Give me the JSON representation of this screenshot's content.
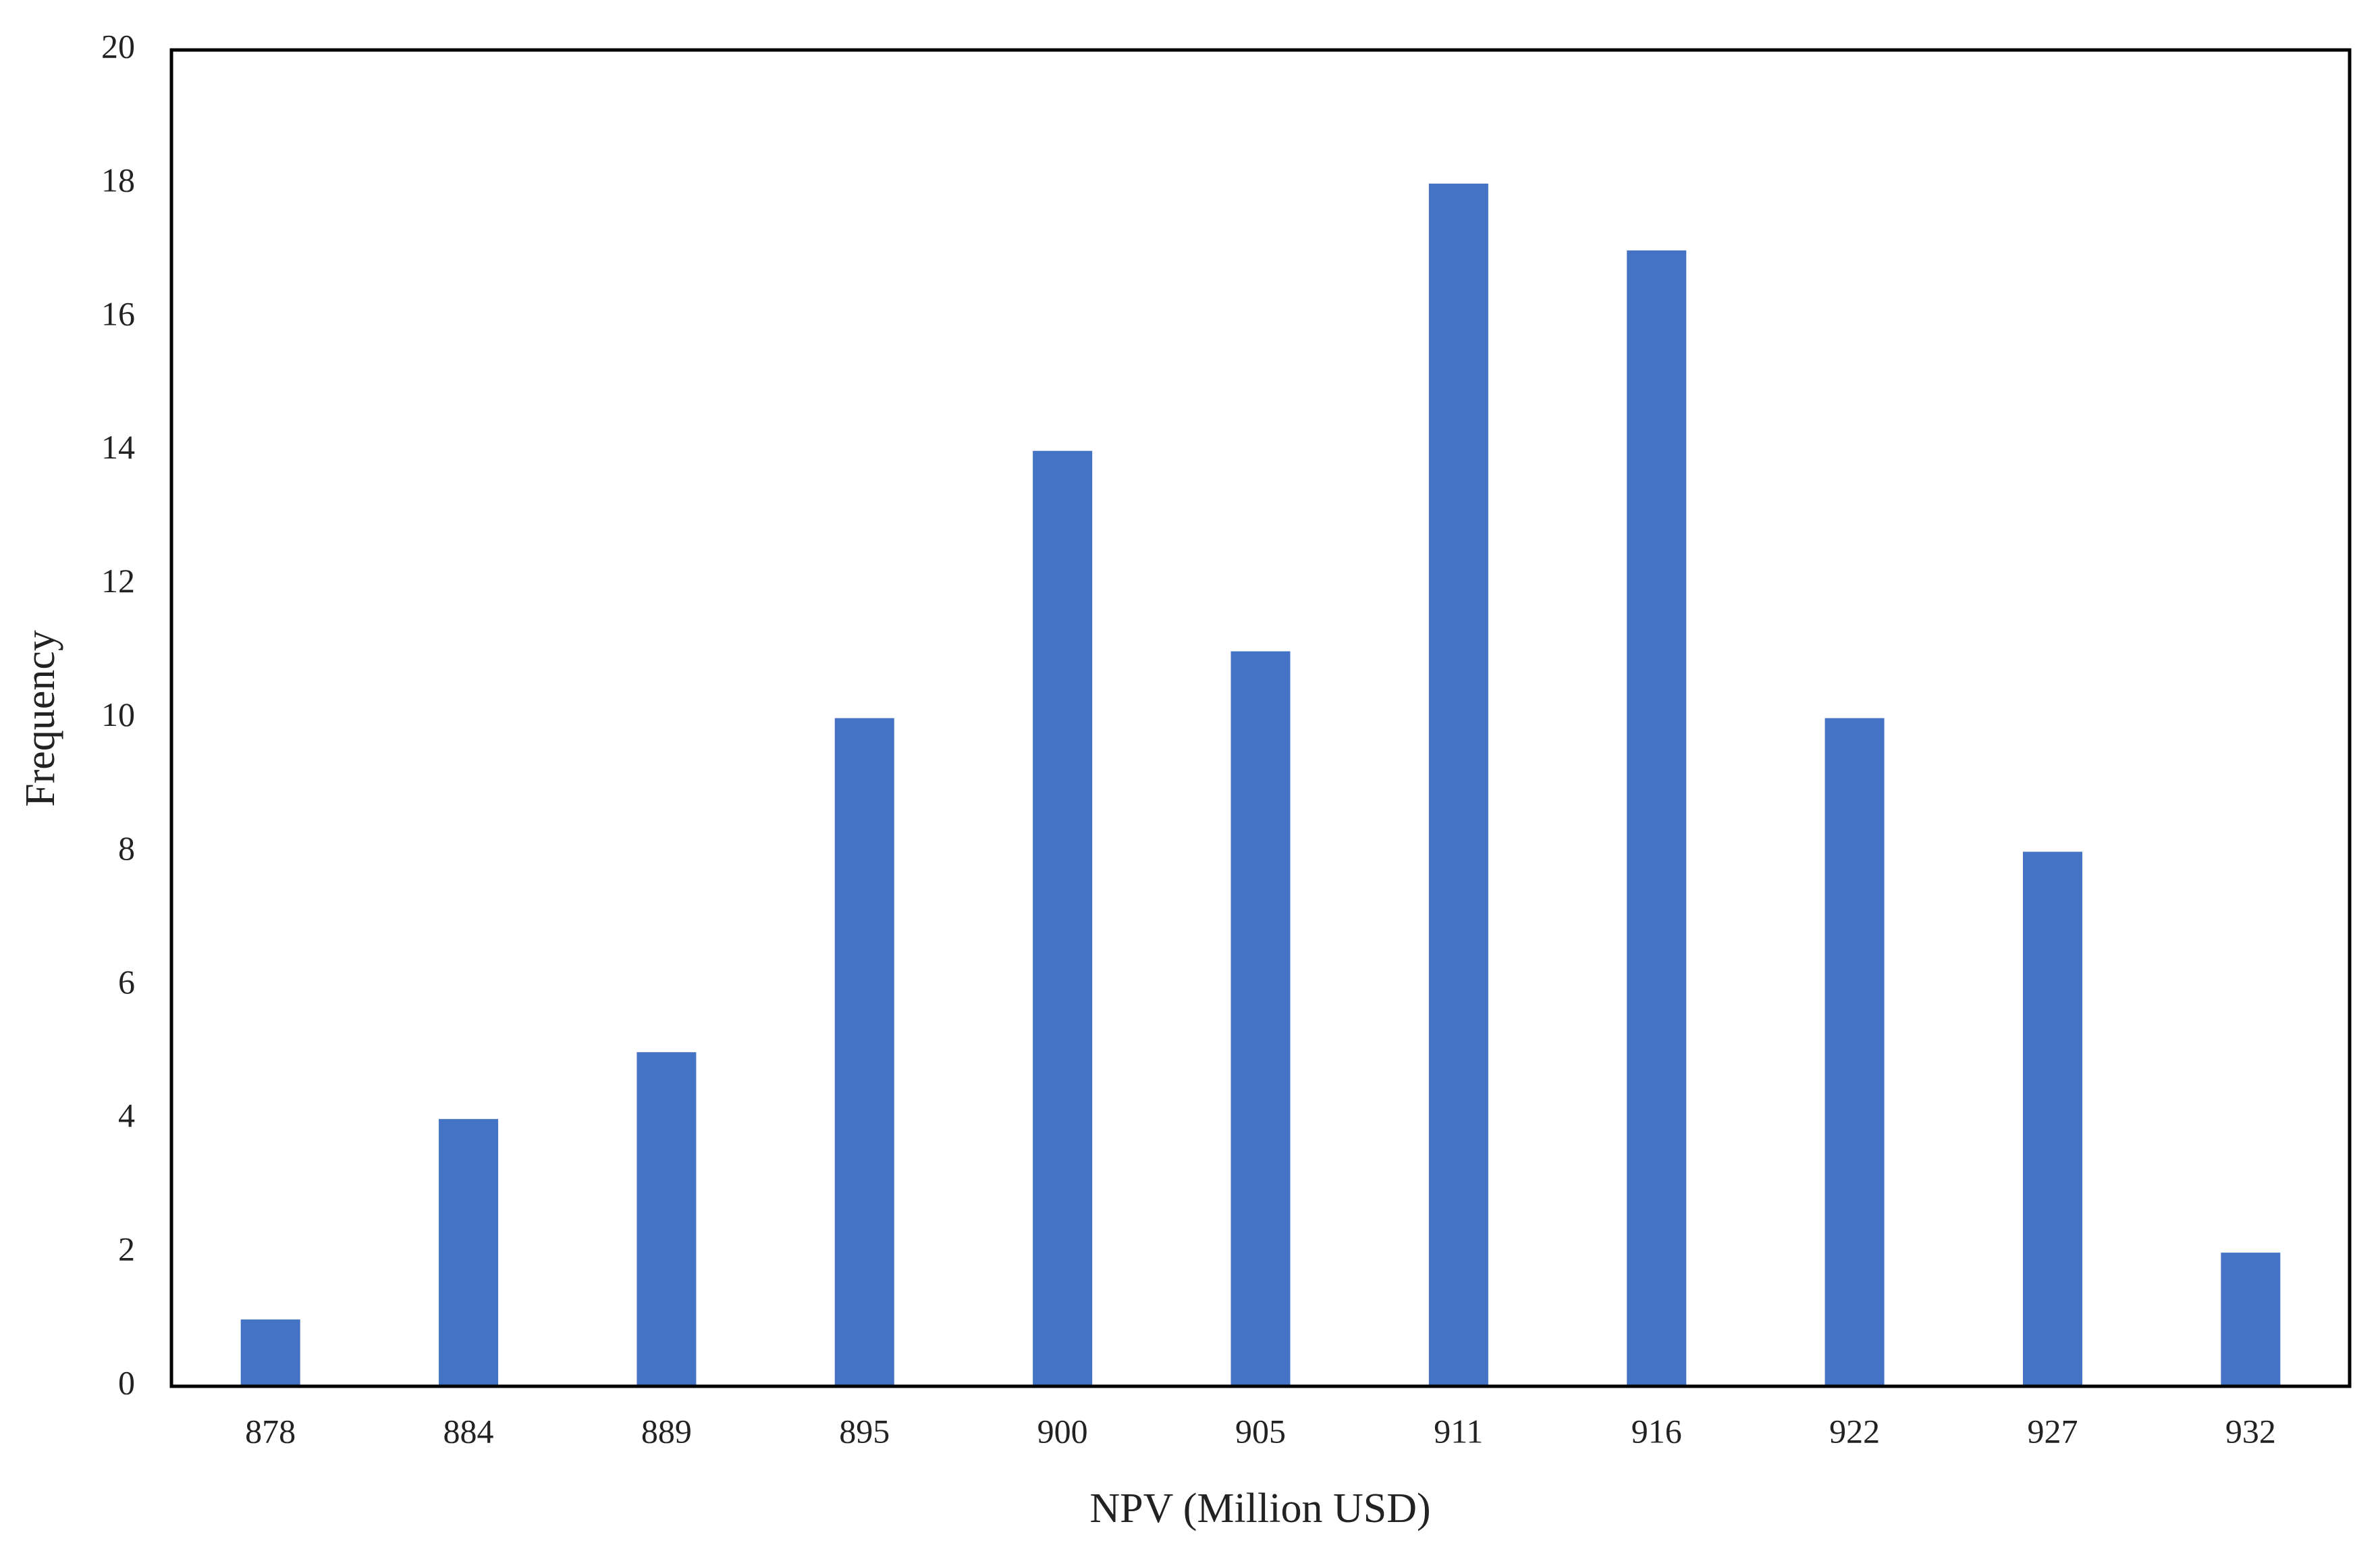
{
  "chart_data": {
    "type": "bar",
    "x_label": "NPV (Million USD)",
    "y_label": "Frequency",
    "categories": [
      "878",
      "884",
      "889",
      "895",
      "900",
      "905",
      "911",
      "916",
      "922",
      "927",
      "932"
    ],
    "values": [
      1,
      4,
      5,
      10,
      14,
      11,
      18,
      17,
      10,
      8,
      2
    ],
    "color": "#4472c4",
    "ylim": [
      0,
      20
    ],
    "yticks": [
      0,
      2,
      4,
      6,
      8,
      10,
      12,
      14,
      16,
      18,
      20
    ],
    "grid": false
  }
}
